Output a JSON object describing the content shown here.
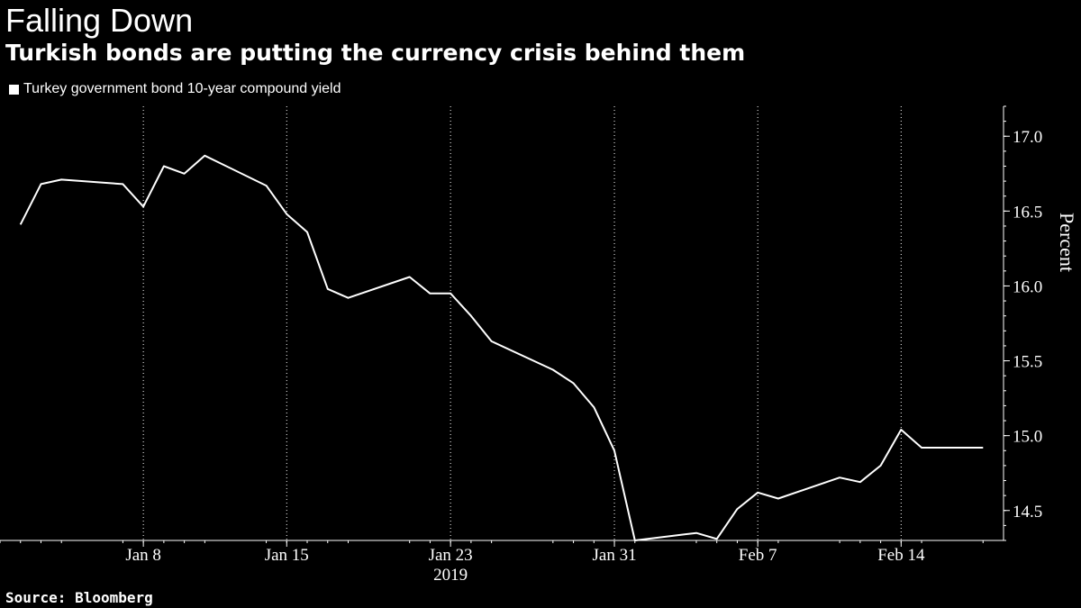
{
  "title": "Falling Down",
  "subtitle": "Turkish bonds are putting the currency crisis behind them",
  "source": "Source: Bloomberg",
  "colors": {
    "background": "#000000",
    "line": "#ffffff",
    "grid": "#ffffff"
  },
  "chart_data": {
    "type": "line",
    "title": "Falling Down",
    "subtitle": "Turkish bonds are putting the currency crisis behind them",
    "ylabel": "Percent",
    "xlabel": "",
    "year_label": "2019",
    "ylim": [
      14.3,
      17.2
    ],
    "yticks": [
      14.5,
      15.0,
      15.5,
      16.0,
      16.5,
      17.0
    ],
    "ytick_labels": [
      "14.5",
      "15.0",
      "15.5",
      "16.0",
      "16.5",
      "17.0"
    ],
    "xtick_labels": [
      "Jan 8",
      "Jan 15",
      "Jan 23",
      "Jan 31",
      "Feb 7",
      "Feb 14"
    ],
    "xtick_dates": [
      "2019-01-08",
      "2019-01-15",
      "2019-01-23",
      "2019-01-31",
      "2019-02-07",
      "2019-02-14"
    ],
    "grid": "vertical dotted at date ticks",
    "legend_position": "top-left",
    "series": [
      {
        "name": "Turkey government bond 10-year compound yield",
        "x": [
          "2019-01-02",
          "2019-01-03",
          "2019-01-04",
          "2019-01-07",
          "2019-01-08",
          "2019-01-09",
          "2019-01-10",
          "2019-01-11",
          "2019-01-14",
          "2019-01-15",
          "2019-01-16",
          "2019-01-17",
          "2019-01-18",
          "2019-01-21",
          "2019-01-22",
          "2019-01-23",
          "2019-01-24",
          "2019-01-25",
          "2019-01-28",
          "2019-01-29",
          "2019-01-30",
          "2019-01-31",
          "2019-02-01",
          "2019-02-04",
          "2019-02-05",
          "2019-02-06",
          "2019-02-07",
          "2019-02-08",
          "2019-02-11",
          "2019-02-12",
          "2019-02-13",
          "2019-02-14",
          "2019-02-15",
          "2019-02-18"
        ],
        "values": [
          16.41,
          16.68,
          16.71,
          16.68,
          16.53,
          16.8,
          16.75,
          16.87,
          16.67,
          16.48,
          16.36,
          15.98,
          15.92,
          16.06,
          15.95,
          15.95,
          15.8,
          15.63,
          15.44,
          15.35,
          15.19,
          14.9,
          14.3,
          14.35,
          14.31,
          14.51,
          14.62,
          14.58,
          14.72,
          14.69,
          14.8,
          15.04,
          14.92,
          14.92
        ]
      }
    ]
  }
}
